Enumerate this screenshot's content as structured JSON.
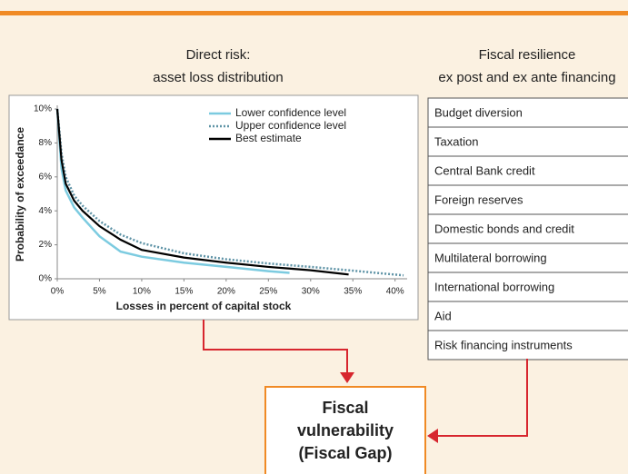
{
  "left_heading": [
    "Direct risk:",
    "asset loss distribution"
  ],
  "right_heading": [
    "Fiscal resilience",
    "ex post and ex ante financing"
  ],
  "chart_data": {
    "type": "line",
    "x_label": "Losses in percent of capital stock",
    "y_label": "Probability of exceedance",
    "x": [
      0,
      0.5,
      1,
      2,
      3,
      5,
      7.5,
      10,
      15,
      20,
      25,
      27.5,
      30,
      34.5,
      41
    ],
    "xlim": [
      0,
      41
    ],
    "ylim": [
      0,
      10
    ],
    "xticks": [
      {
        "value": 0,
        "label": "0%"
      },
      {
        "value": 5,
        "label": "5%"
      },
      {
        "value": 10,
        "label": "10%"
      },
      {
        "value": 15,
        "label": "15%"
      },
      {
        "value": 20,
        "label": "20%"
      },
      {
        "value": 25,
        "label": "25%"
      },
      {
        "value": 30,
        "label": "30%"
      },
      {
        "value": 35,
        "label": "35%"
      },
      {
        "value": 40,
        "label": "40%"
      }
    ],
    "yticks": [
      {
        "value": 0,
        "label": "0%"
      },
      {
        "value": 2,
        "label": "2%"
      },
      {
        "value": 4,
        "label": "4%"
      },
      {
        "value": 6,
        "label": "6%"
      },
      {
        "value": 8,
        "label": "8%"
      },
      {
        "value": 10,
        "label": "10%"
      }
    ],
    "legend": "upper right",
    "series": [
      {
        "name": "Lower confidence level",
        "color": "#7ccbe0",
        "dash": "solid",
        "values": [
          10,
          6.5,
          5.2,
          4.2,
          3.6,
          2.5,
          1.6,
          1.3,
          0.95,
          0.7,
          0.45,
          0.35,
          null,
          null,
          null
        ]
      },
      {
        "name": "Upper confidence level",
        "color": "#5e93a6",
        "dash": "dotted",
        "values": [
          10,
          7.4,
          6,
          4.9,
          4.3,
          3.4,
          2.6,
          2.1,
          1.5,
          1.15,
          0.9,
          0.8,
          0.7,
          0.5,
          0.2
        ]
      },
      {
        "name": "Best estimate",
        "color": "#000000",
        "dash": "solid",
        "values": [
          10,
          7,
          5.6,
          4.6,
          4,
          3.1,
          2.3,
          1.7,
          1.25,
          0.95,
          0.7,
          0.6,
          0.5,
          0.25,
          null
        ]
      }
    ]
  },
  "financing_instruments": [
    "Budget diversion",
    "Taxation",
    "Central Bank credit",
    "Foreign reserves",
    "Domestic bonds and credit",
    "Multilateral borrowing",
    "International borrowing",
    "Aid",
    "Risk financing instruments"
  ],
  "result_box": [
    "Fiscal",
    "vulnerability",
    "(Fiscal Gap)"
  ]
}
